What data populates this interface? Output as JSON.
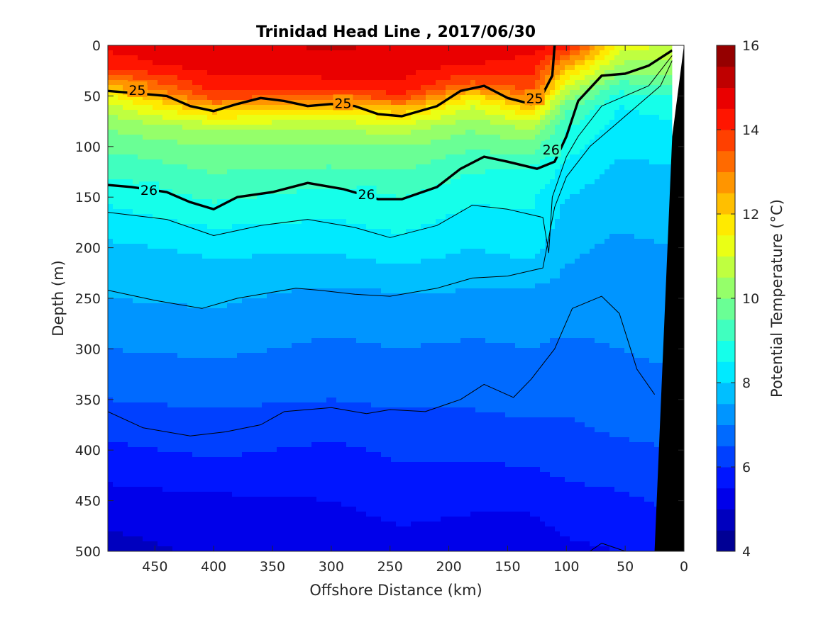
{
  "chart_data": {
    "type": "heatmap",
    "subtype": "filled-contour section",
    "title": "Trinidad Head Line , 2017/06/30",
    "xlabel": "Offshore Distance (km)",
    "ylabel": "Depth (m)",
    "colorbar_label": "Potential Temperature (°C)",
    "xlim": [
      490,
      0
    ],
    "ylim": [
      0,
      500
    ],
    "x_reversed": true,
    "y_reversed": true,
    "x_ticks": [
      450,
      400,
      350,
      300,
      250,
      200,
      150,
      100,
      50,
      0
    ],
    "y_ticks": [
      0,
      50,
      100,
      150,
      200,
      250,
      300,
      350,
      400,
      450,
      500
    ],
    "colorbar": {
      "range": [
        4,
        16
      ],
      "step": 0.5,
      "ticks": [
        4,
        6,
        8,
        10,
        12,
        14,
        16
      ],
      "colormap": "jet"
    },
    "temperature_profiles": {
      "depths": [
        0,
        20,
        40,
        50,
        60,
        80,
        100,
        120,
        150,
        200,
        250,
        300,
        350,
        400,
        450,
        500
      ],
      "stations": [
        {
          "x": 490,
          "temps": [
            14.6,
            14.3,
            12.4,
            11.3,
            10.8,
            10.1,
            9.6,
            9.2,
            8.6,
            7.9,
            7.5,
            7.0,
            6.5,
            5.9,
            5.3,
            4.8
          ]
        },
        {
          "x": 400,
          "temps": [
            14.8,
            14.7,
            14.3,
            13.8,
            12.6,
            10.7,
            10.0,
            9.6,
            9.1,
            8.1,
            7.6,
            7.1,
            6.6,
            6.1,
            5.4,
            5.1
          ]
        },
        {
          "x": 300,
          "temps": [
            15.1,
            14.8,
            14.3,
            13.4,
            12.2,
            10.6,
            10.0,
            9.5,
            8.8,
            8.1,
            7.3,
            6.9,
            6.5,
            5.9,
            5.5,
            5.1
          ]
        },
        {
          "x": 240,
          "temps": [
            14.9,
            14.7,
            14.4,
            13.9,
            12.6,
            10.8,
            10.0,
            9.6,
            9.0,
            8.3,
            7.4,
            7.0,
            6.6,
            6.1,
            5.7,
            5.3
          ]
        },
        {
          "x": 180,
          "temps": [
            14.8,
            14.5,
            13.3,
            11.8,
            11.0,
            10.1,
            9.6,
            9.1,
            8.6,
            8.0,
            7.4,
            6.9,
            6.6,
            6.1,
            5.6,
            5.2
          ]
        },
        {
          "x": 130,
          "temps": [
            14.7,
            14.3,
            13.8,
            13.2,
            12.3,
            10.7,
            9.8,
            9.0,
            8.6,
            8.2,
            7.3,
            7.0,
            6.7,
            6.2,
            5.6,
            5.2
          ]
        },
        {
          "x": 100,
          "temps": [
            14.5,
            12.5,
            11.0,
            10.3,
            9.7,
            9.1,
            8.7,
            8.4,
            8.0,
            7.6,
            7.3,
            6.9,
            6.6,
            6.3,
            5.8,
            5.4
          ]
        },
        {
          "x": 55,
          "temps": [
            11.2,
            10.4,
            9.3,
            8.8,
            8.5,
            8.3,
            8.1,
            7.9,
            7.7,
            7.4,
            7.2,
            7.0,
            6.8,
            6.4,
            5.9,
            5.5
          ]
        },
        {
          "x": 10,
          "temps": [
            11.0,
            10.3,
            9.5,
            9.0,
            8.7,
            8.4,
            8.2,
            8.0,
            7.8,
            7.5,
            7.3,
            7.1,
            6.8,
            6.5,
            6.1,
            5.7
          ]
        }
      ]
    },
    "density_contours": [
      {
        "label": "25",
        "bold": true,
        "points": [
          [
            490,
            45
          ],
          [
            470,
            47
          ],
          [
            440,
            50
          ],
          [
            420,
            60
          ],
          [
            400,
            65
          ],
          [
            380,
            58
          ],
          [
            360,
            52
          ],
          [
            340,
            55
          ],
          [
            320,
            60
          ],
          [
            300,
            58
          ],
          [
            280,
            60
          ],
          [
            260,
            68
          ],
          [
            240,
            70
          ],
          [
            210,
            60
          ],
          [
            190,
            45
          ],
          [
            170,
            40
          ],
          [
            150,
            52
          ],
          [
            130,
            58
          ],
          [
            120,
            48
          ],
          [
            112,
            30
          ],
          [
            110,
            0
          ]
        ],
        "label_positions": [
          [
            465,
            44
          ],
          [
            290,
            57
          ],
          [
            127,
            52
          ]
        ]
      },
      {
        "label": "26",
        "bold": true,
        "points": [
          [
            490,
            138
          ],
          [
            470,
            140
          ],
          [
            440,
            145
          ],
          [
            420,
            155
          ],
          [
            400,
            162
          ],
          [
            380,
            150
          ],
          [
            350,
            145
          ],
          [
            320,
            136
          ],
          [
            290,
            142
          ],
          [
            260,
            152
          ],
          [
            240,
            152
          ],
          [
            210,
            140
          ],
          [
            190,
            122
          ],
          [
            170,
            110
          ],
          [
            150,
            115
          ],
          [
            125,
            122
          ],
          [
            110,
            115
          ],
          [
            100,
            90
          ],
          [
            90,
            55
          ],
          [
            70,
            30
          ],
          [
            50,
            28
          ],
          [
            30,
            20
          ],
          [
            10,
            5
          ]
        ],
        "label_positions": [
          [
            455,
            143
          ],
          [
            270,
            147
          ],
          [
            113,
            103
          ]
        ]
      },
      {
        "label": "",
        "bold": false,
        "points": [
          [
            490,
            165
          ],
          [
            440,
            172
          ],
          [
            400,
            188
          ],
          [
            360,
            178
          ],
          [
            320,
            172
          ],
          [
            280,
            180
          ],
          [
            250,
            190
          ],
          [
            210,
            178
          ],
          [
            180,
            158
          ],
          [
            150,
            162
          ],
          [
            120,
            170
          ],
          [
            115,
            205
          ],
          [
            112,
            150
          ],
          [
            100,
            110
          ],
          [
            90,
            90
          ],
          [
            70,
            60
          ],
          [
            50,
            50
          ],
          [
            30,
            40
          ],
          [
            10,
            10
          ]
        ]
      },
      {
        "label": "",
        "bold": false,
        "points": [
          [
            490,
            242
          ],
          [
            450,
            252
          ],
          [
            410,
            260
          ],
          [
            380,
            250
          ],
          [
            330,
            240
          ],
          [
            310,
            242
          ],
          [
            280,
            246
          ],
          [
            250,
            248
          ],
          [
            210,
            240
          ],
          [
            180,
            230
          ],
          [
            150,
            228
          ],
          [
            120,
            220
          ],
          [
            110,
            160
          ],
          [
            100,
            130
          ],
          [
            80,
            100
          ],
          [
            60,
            80
          ],
          [
            40,
            60
          ],
          [
            20,
            40
          ],
          [
            10,
            15
          ]
        ]
      },
      {
        "label": "",
        "bold": false,
        "points": [
          [
            490,
            362
          ],
          [
            460,
            378
          ],
          [
            420,
            386
          ],
          [
            390,
            382
          ],
          [
            360,
            375
          ],
          [
            340,
            362
          ],
          [
            300,
            358
          ],
          [
            270,
            364
          ],
          [
            250,
            360
          ],
          [
            220,
            362
          ],
          [
            190,
            350
          ],
          [
            170,
            335
          ],
          [
            145,
            348
          ],
          [
            130,
            330
          ],
          [
            110,
            300
          ],
          [
            95,
            260
          ],
          [
            70,
            248
          ],
          [
            55,
            265
          ],
          [
            40,
            320
          ],
          [
            25,
            345
          ]
        ]
      },
      {
        "label": "",
        "bold": false,
        "points": [
          [
            80,
            500
          ],
          [
            70,
            492
          ],
          [
            55,
            498
          ],
          [
            50,
            500
          ]
        ]
      }
    ],
    "bottom_mask": {
      "description": "seafloor / no-data region on shelf",
      "points": [
        [
          0,
          0
        ],
        [
          0,
          500
        ],
        [
          25,
          500
        ],
        [
          10,
          90
        ],
        [
          0,
          0
        ]
      ]
    },
    "white_gap": {
      "points": [
        [
          0,
          0
        ],
        [
          10,
          0
        ],
        [
          10,
          90
        ],
        [
          0,
          200
        ]
      ]
    }
  }
}
